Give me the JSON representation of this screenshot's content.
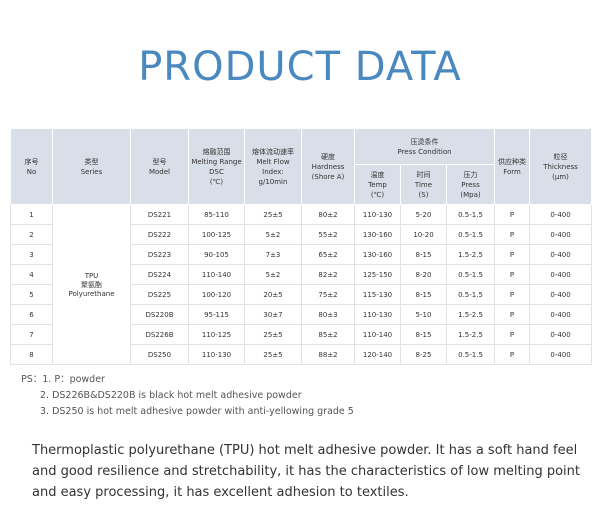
{
  "title": "PRODUCT DATA",
  "table": {
    "headers": {
      "no": {
        "cn": "序号",
        "en": "No"
      },
      "series": {
        "cn": "类型",
        "en": "Series"
      },
      "model": {
        "cn": "型号",
        "en": "Model"
      },
      "dsc": {
        "cn": "熔融范围",
        "en1": "Melting Range",
        "en2": "DSC",
        "unit": "(℃)"
      },
      "mfi": {
        "cn": "熔体流动速率",
        "en1": "Melt Flow",
        "en2": "Index:",
        "unit": "g/10min"
      },
      "hardness": {
        "cn": "硬度",
        "en1": "Hardness",
        "en2": "(Shore A)"
      },
      "press": {
        "cn": "压烫条件",
        "en": "Press Condition"
      },
      "temp": {
        "cn": "温度",
        "en": "Temp",
        "unit": "(℃)"
      },
      "time": {
        "cn": "时间",
        "en": "Time",
        "unit": "(S)"
      },
      "pressure": {
        "cn": "压力",
        "en": "Press",
        "unit": "(Mpa)"
      },
      "form": {
        "cn": "供应种类",
        "en": "Form"
      },
      "thickness": {
        "cn": "粒径",
        "en1": "Thickness",
        "unit": "(μm)"
      }
    },
    "series_cell": {
      "en": "TPU",
      "cn": "聚氨酯",
      "en2": "Polyurethane"
    },
    "rows": [
      {
        "no": "1",
        "model": "DS221",
        "dsc": "85-110",
        "mfi": "25±5",
        "hardness": "80±2",
        "temp": "110-130",
        "time": "5-20",
        "press": "0.5-1.5",
        "form": "P",
        "thickness": "0-400"
      },
      {
        "no": "2",
        "model": "DS222",
        "dsc": "100-125",
        "mfi": "5±2",
        "hardness": "55±2",
        "temp": "130-160",
        "time": "10-20",
        "press": "0.5-1.5",
        "form": "P",
        "thickness": "0-400"
      },
      {
        "no": "3",
        "model": "DS223",
        "dsc": "90-105",
        "mfi": "7±3",
        "hardness": "65±2",
        "temp": "130-160",
        "time": "8-15",
        "press": "1.5-2.5",
        "form": "P",
        "thickness": "0-400"
      },
      {
        "no": "4",
        "model": "DS224",
        "dsc": "110-140",
        "mfi": "5±2",
        "hardness": "82±2",
        "temp": "125-150",
        "time": "8-20",
        "press": "0.5-1.5",
        "form": "P",
        "thickness": "0-400"
      },
      {
        "no": "5",
        "model": "DS225",
        "dsc": "100-120",
        "mfi": "20±5",
        "hardness": "75±2",
        "temp": "115-130",
        "time": "8-15",
        "press": "0.5-1.5",
        "form": "P",
        "thickness": "0-400"
      },
      {
        "no": "6",
        "model": "DS220B",
        "dsc": "95-115",
        "mfi": "30±7",
        "hardness": "80±3",
        "temp": "110-130",
        "time": "5-10",
        "press": "1.5-2.5",
        "form": "P",
        "thickness": "0-400"
      },
      {
        "no": "7",
        "model": "DS226B",
        "dsc": "110-125",
        "mfi": "25±5",
        "hardness": "85±2",
        "temp": "110-140",
        "time": "8-15",
        "press": "1.5-2.5",
        "form": "P",
        "thickness": "0-400"
      },
      {
        "no": "8",
        "model": "DS250",
        "dsc": "110-130",
        "mfi": "25±5",
        "hardness": "88±2",
        "temp": "120-140",
        "time": "8-25",
        "press": "0.5-1.5",
        "form": "P",
        "thickness": "0-400"
      }
    ]
  },
  "notes": {
    "line1": "PS：1. P：powder",
    "line2": "2. DS226B&DS220B is black hot melt adhesive powder",
    "line3": "3. DS250 is hot melt adhesive powder with anti-yellowing grade 5"
  },
  "description": "Thermoplastic polyurethane (TPU) hot melt adhesive powder. It has a soft hand feel and good resilience and stretchability, it has the characteristics of low melting point and easy processing, it has excellent adhesion to textiles.",
  "colors": {
    "title": "#4a88c0",
    "header_bg": "#d9dfe8"
  }
}
